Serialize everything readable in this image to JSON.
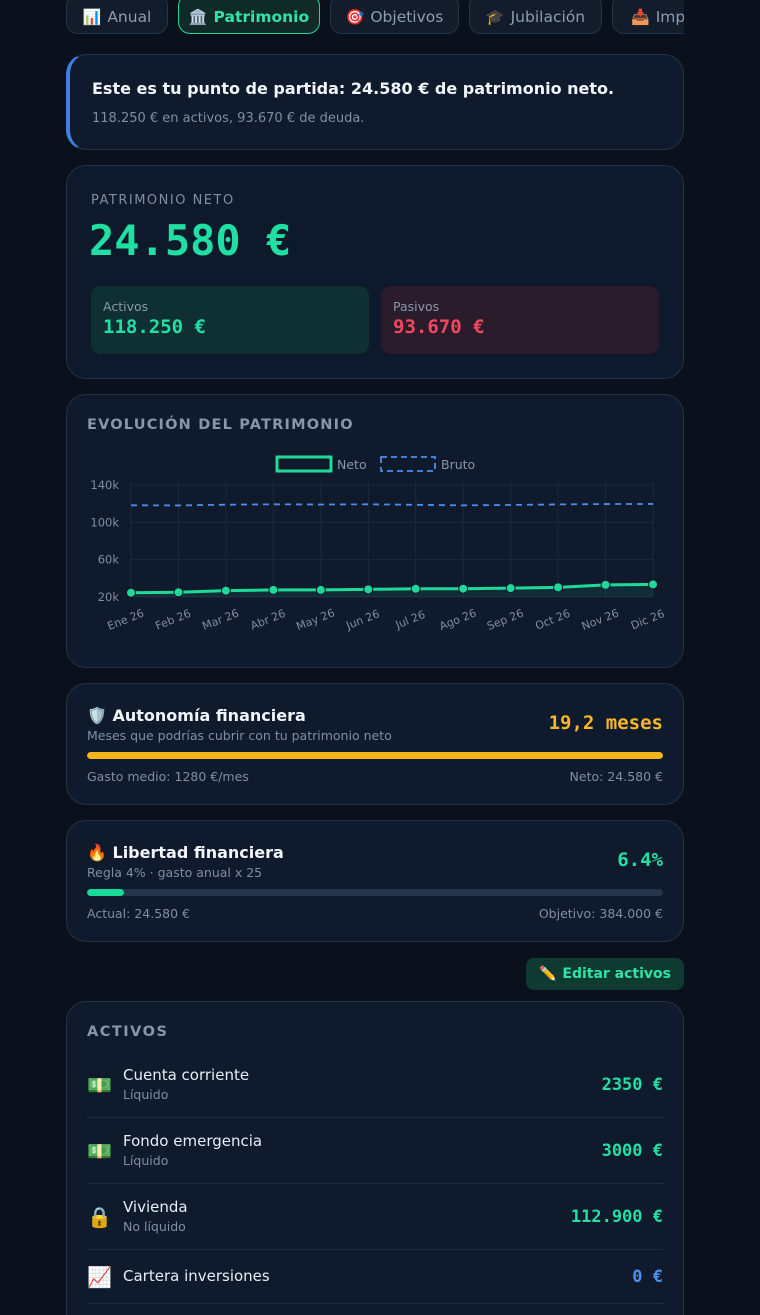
{
  "tabs": [
    {
      "icon": "📊",
      "label": "Anual"
    },
    {
      "icon": "🏛️",
      "label": "Patrimonio",
      "active": true
    },
    {
      "icon": "🎯",
      "label": "Objetivos"
    },
    {
      "icon": "🎓",
      "label": "Jubilación"
    },
    {
      "icon": "📥",
      "label": "Impuestos"
    }
  ],
  "info": {
    "title": "Este es tu punto de partida: 24.580 € de patrimonio neto.",
    "subtitle": "118.250 € en activos, 93.670 € de deuda."
  },
  "net_worth": {
    "label": "PATRIMONIO NETO",
    "value": "24.580 €",
    "assets_label": "Activos",
    "assets_value": "118.250 €",
    "liabilities_label": "Pasivos",
    "liabilities_value": "93.670 €"
  },
  "chart_data": {
    "type": "line",
    "title": "EVOLUCIÓN DEL PATRIMONIO",
    "legend_placement": "top-center",
    "categories": [
      "Ene 26",
      "Feb 26",
      "Mar 26",
      "Abr 26",
      "May 26",
      "Jun 26",
      "Jul 26",
      "Ago 26",
      "Sep 26",
      "Oct 26",
      "Nov 26",
      "Dic 26"
    ],
    "y_ticks": [
      "140k",
      "100k",
      "60k",
      "20k"
    ],
    "ylim": [
      20000,
      140000
    ],
    "grid": true,
    "series": [
      {
        "name": "Neto",
        "color": "#1fd99a",
        "style": "solid",
        "values": [
          24580,
          25100,
          26800,
          27600,
          27600,
          28200,
          28800,
          28900,
          29500,
          30300,
          33000,
          33500
        ]
      },
      {
        "name": "Bruto",
        "color": "#4a8ff0",
        "style": "dashed",
        "values": [
          118250,
          118100,
          118900,
          119300,
          119100,
          119300,
          118800,
          118200,
          118600,
          119200,
          119600,
          119700
        ]
      }
    ]
  },
  "autonomy": {
    "icon": "🛡️",
    "title": "Autonomía financiera",
    "subtitle": "Meses que podrías cubrir con tu patrimonio neto",
    "value": "19,2 meses",
    "progress": 1.0,
    "left": "Gasto medio: 1280 €/mes",
    "right": "Neto: 24.580 €",
    "color": "#f6b41c"
  },
  "freedom": {
    "icon": "🔥",
    "title": "Libertad financiera",
    "subtitle": "Regla 4% · gasto anual x 25",
    "value": "6.4%",
    "progress": 0.064,
    "left": "Actual: 24.580 €",
    "right": "Objetivo: 384.000 €",
    "color": "#18d99a"
  },
  "edit_button": {
    "icon": "✏️",
    "label": "Editar activos"
  },
  "assets": {
    "title": "ACTIVOS",
    "items": [
      {
        "icon": "💵",
        "name": "Cuenta corriente",
        "kind": "Líquido",
        "amount": "2350 €"
      },
      {
        "icon": "💵",
        "name": "Fondo emergencia",
        "kind": "Líquido",
        "amount": "3000 €"
      },
      {
        "icon": "🔒",
        "name": "Vivienda",
        "kind": "No líquido",
        "amount": "112.900 €"
      },
      {
        "icon": "📈",
        "name": "Cartera inversiones",
        "kind": "",
        "amount": "0 €"
      }
    ]
  }
}
